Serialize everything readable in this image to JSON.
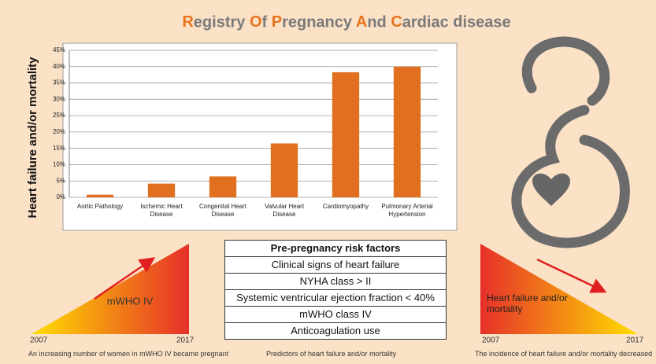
{
  "chart_data": {
    "type": "bar",
    "title": "Registry Of Pregnancy And Cardiac disease",
    "y_label": "Heart failure and/or mortality",
    "categories": [
      "Aortic Pathology",
      "Ischemic Heart Disease",
      "Congenital Heart Disease",
      "Valvular Heart Disease",
      "Cardiomyopathy",
      "Pulmonary Arterial Hypertension"
    ],
    "values": [
      0.8,
      4.2,
      6.4,
      16.5,
      38.3,
      40
    ],
    "color": "#e07020",
    "ylim": [
      0,
      45
    ],
    "yticks": [
      {
        "value": 0,
        "label": "0%"
      },
      {
        "value": 5,
        "label": "5%"
      },
      {
        "value": 10,
        "label": "10%"
      },
      {
        "value": 15,
        "label": "15%"
      },
      {
        "value": 20,
        "label": "20%"
      },
      {
        "value": 25,
        "label": "25%"
      },
      {
        "value": 30,
        "label": "30%"
      },
      {
        "value": 35,
        "label": "35%"
      },
      {
        "value": 40,
        "label": "40%"
      },
      {
        "value": 45,
        "label": "45%"
      }
    ],
    "grid": true
  },
  "left_panel": {
    "label": "mWHO IV",
    "start": "2007",
    "end": "2017",
    "caption": "An increasing number of women in mWHO IV became pregnant"
  },
  "table": {
    "header": "Pre-pregnancy risk factors",
    "rows": [
      "Clinical signs of heart failure",
      "NYHA class > II",
      "Systemic ventricular ejection fraction < 40%",
      "mWHO class IV",
      "Anticoagulation use"
    ],
    "caption": "Predictors of heart failure and/or mortality"
  },
  "right_panel": {
    "label": "Heart failure and/or mortality",
    "start": "2007",
    "end": "2017",
    "caption": "The incidence of heart failure and/or mortality decreased"
  }
}
